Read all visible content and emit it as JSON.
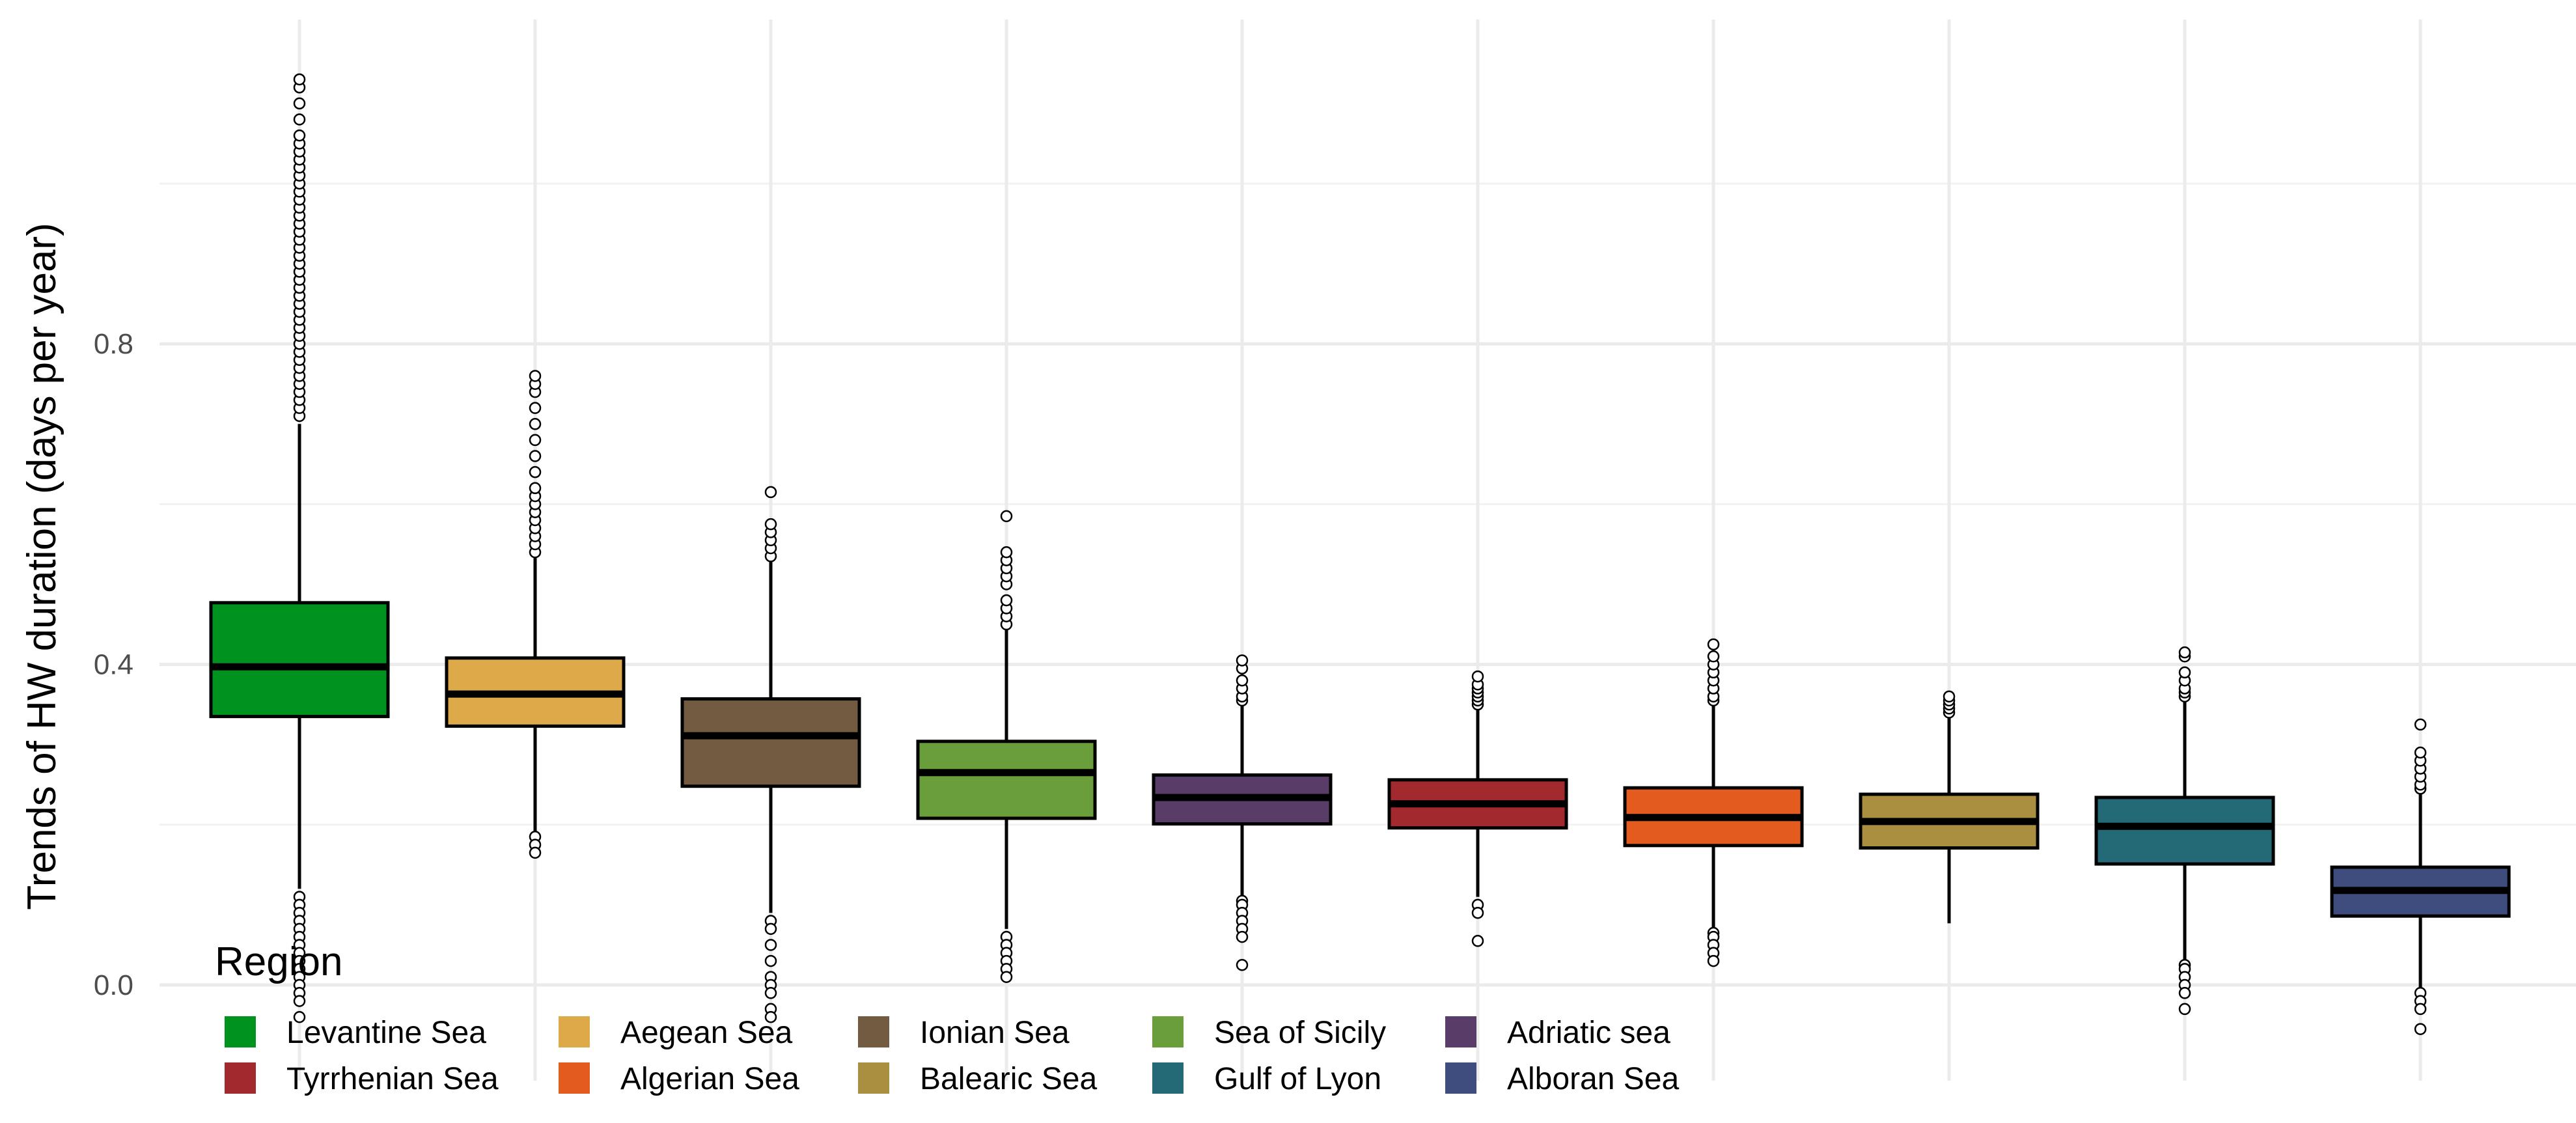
{
  "chart_data": {
    "type": "boxplot",
    "title": "",
    "xlabel": "",
    "ylabel": "Trends of HW duration (days per year)",
    "ylim": [
      -0.045,
      1.2
    ],
    "yticks": [
      0.0,
      0.4,
      0.8
    ],
    "ytick_labels": [
      "0.0",
      "0.4",
      "0.8"
    ],
    "grid": true,
    "legend_position": "bottom-left",
    "legend_title": "Region",
    "series": [
      {
        "name": "Levantine Sea",
        "color": "#00921F",
        "q1": 0.335,
        "median": 0.397,
        "q3": 0.477,
        "whisker_low": 0.12,
        "whisker_high": 0.7,
        "outliers_low": [
          0.11,
          0.1,
          0.09,
          0.08,
          0.07,
          0.06,
          0.05,
          0.04,
          0.03,
          0.02,
          0.01,
          0.0,
          -0.01,
          -0.02,
          -0.04
        ],
        "outliers_high": [
          0.71,
          0.72,
          0.73,
          0.74,
          0.75,
          0.76,
          0.77,
          0.78,
          0.79,
          0.8,
          0.81,
          0.82,
          0.83,
          0.84,
          0.85,
          0.86,
          0.87,
          0.88,
          0.89,
          0.9,
          0.91,
          0.92,
          0.93,
          0.94,
          0.95,
          0.96,
          0.97,
          0.98,
          0.99,
          1.0,
          1.01,
          1.02,
          1.03,
          1.04,
          1.05,
          1.06,
          1.08,
          1.1,
          1.12,
          1.13
        ]
      },
      {
        "name": "Aegean Sea",
        "color": "#DEA948",
        "q1": 0.323,
        "median": 0.363,
        "q3": 0.408,
        "whisker_low": 0.19,
        "whisker_high": 0.535,
        "outliers_low": [
          0.185,
          0.175,
          0.165
        ],
        "outliers_high": [
          0.54,
          0.55,
          0.56,
          0.57,
          0.58,
          0.59,
          0.6,
          0.61,
          0.62,
          0.64,
          0.66,
          0.68,
          0.7,
          0.72,
          0.74,
          0.75,
          0.76
        ]
      },
      {
        "name": "Ionian Sea",
        "color": "#725B40",
        "q1": 0.248,
        "median": 0.311,
        "q3": 0.357,
        "whisker_low": 0.09,
        "whisker_high": 0.528,
        "outliers_low": [
          0.08,
          0.07,
          0.05,
          0.03,
          0.01,
          0.0,
          -0.01,
          -0.03,
          -0.04
        ],
        "outliers_high": [
          0.535,
          0.545,
          0.555,
          0.565,
          0.575,
          0.615
        ]
      },
      {
        "name": "Sea of Sicily",
        "color": "#6A9E3A",
        "q1": 0.208,
        "median": 0.265,
        "q3": 0.304,
        "whisker_low": 0.07,
        "whisker_high": 0.445,
        "outliers_low": [
          0.06,
          0.05,
          0.04,
          0.03,
          0.02,
          0.01
        ],
        "outliers_high": [
          0.45,
          0.46,
          0.47,
          0.48,
          0.5,
          0.51,
          0.52,
          0.53,
          0.54,
          0.585
        ]
      },
      {
        "name": "Adriatic sea",
        "color": "#5A3C69",
        "q1": 0.201,
        "median": 0.234,
        "q3": 0.262,
        "whisker_low": 0.112,
        "whisker_high": 0.35,
        "outliers_low": [
          0.105,
          0.1,
          0.09,
          0.08,
          0.07,
          0.06,
          0.025
        ],
        "outliers_high": [
          0.355,
          0.36,
          0.37,
          0.38,
          0.395,
          0.405
        ]
      },
      {
        "name": "Tyrrhenian Sea",
        "color": "#A2292E",
        "q1": 0.196,
        "median": 0.226,
        "q3": 0.256,
        "whisker_low": 0.11,
        "whisker_high": 0.345,
        "outliers_low": [
          0.1,
          0.09,
          0.055
        ],
        "outliers_high": [
          0.35,
          0.355,
          0.36,
          0.365,
          0.37,
          0.375,
          0.385
        ]
      },
      {
        "name": "Algerian Sea",
        "color": "#E35B1E",
        "q1": 0.174,
        "median": 0.209,
        "q3": 0.246,
        "whisker_low": 0.07,
        "whisker_high": 0.35,
        "outliers_low": [
          0.065,
          0.06,
          0.05,
          0.04,
          0.03
        ],
        "outliers_high": [
          0.355,
          0.36,
          0.37,
          0.38,
          0.39,
          0.4,
          0.41,
          0.425
        ]
      },
      {
        "name": "Balearic Sea",
        "color": "#AA8F41",
        "q1": 0.171,
        "median": 0.204,
        "q3": 0.238,
        "whisker_low": 0.077,
        "whisker_high": 0.337,
        "outliers_low": [],
        "outliers_high": [
          0.34,
          0.345,
          0.35,
          0.355,
          0.36
        ]
      },
      {
        "name": "Gulf of Lyon",
        "color": "#236A76",
        "q1": 0.151,
        "median": 0.198,
        "q3": 0.234,
        "whisker_low": 0.03,
        "whisker_high": 0.355,
        "outliers_low": [
          0.025,
          0.02,
          0.01,
          0.0,
          -0.01,
          -0.03
        ],
        "outliers_high": [
          0.36,
          0.365,
          0.37,
          0.38,
          0.39,
          0.41,
          0.415
        ]
      },
      {
        "name": "Alboran Sea",
        "color": "#3F4C7E",
        "q1": 0.086,
        "median": 0.118,
        "q3": 0.147,
        "whisker_low": -0.005,
        "whisker_high": 0.24,
        "outliers_low": [
          -0.01,
          -0.02,
          -0.03,
          -0.055
        ],
        "outliers_high": [
          0.245,
          0.25,
          0.26,
          0.27,
          0.28,
          0.29,
          0.325
        ]
      }
    ]
  }
}
